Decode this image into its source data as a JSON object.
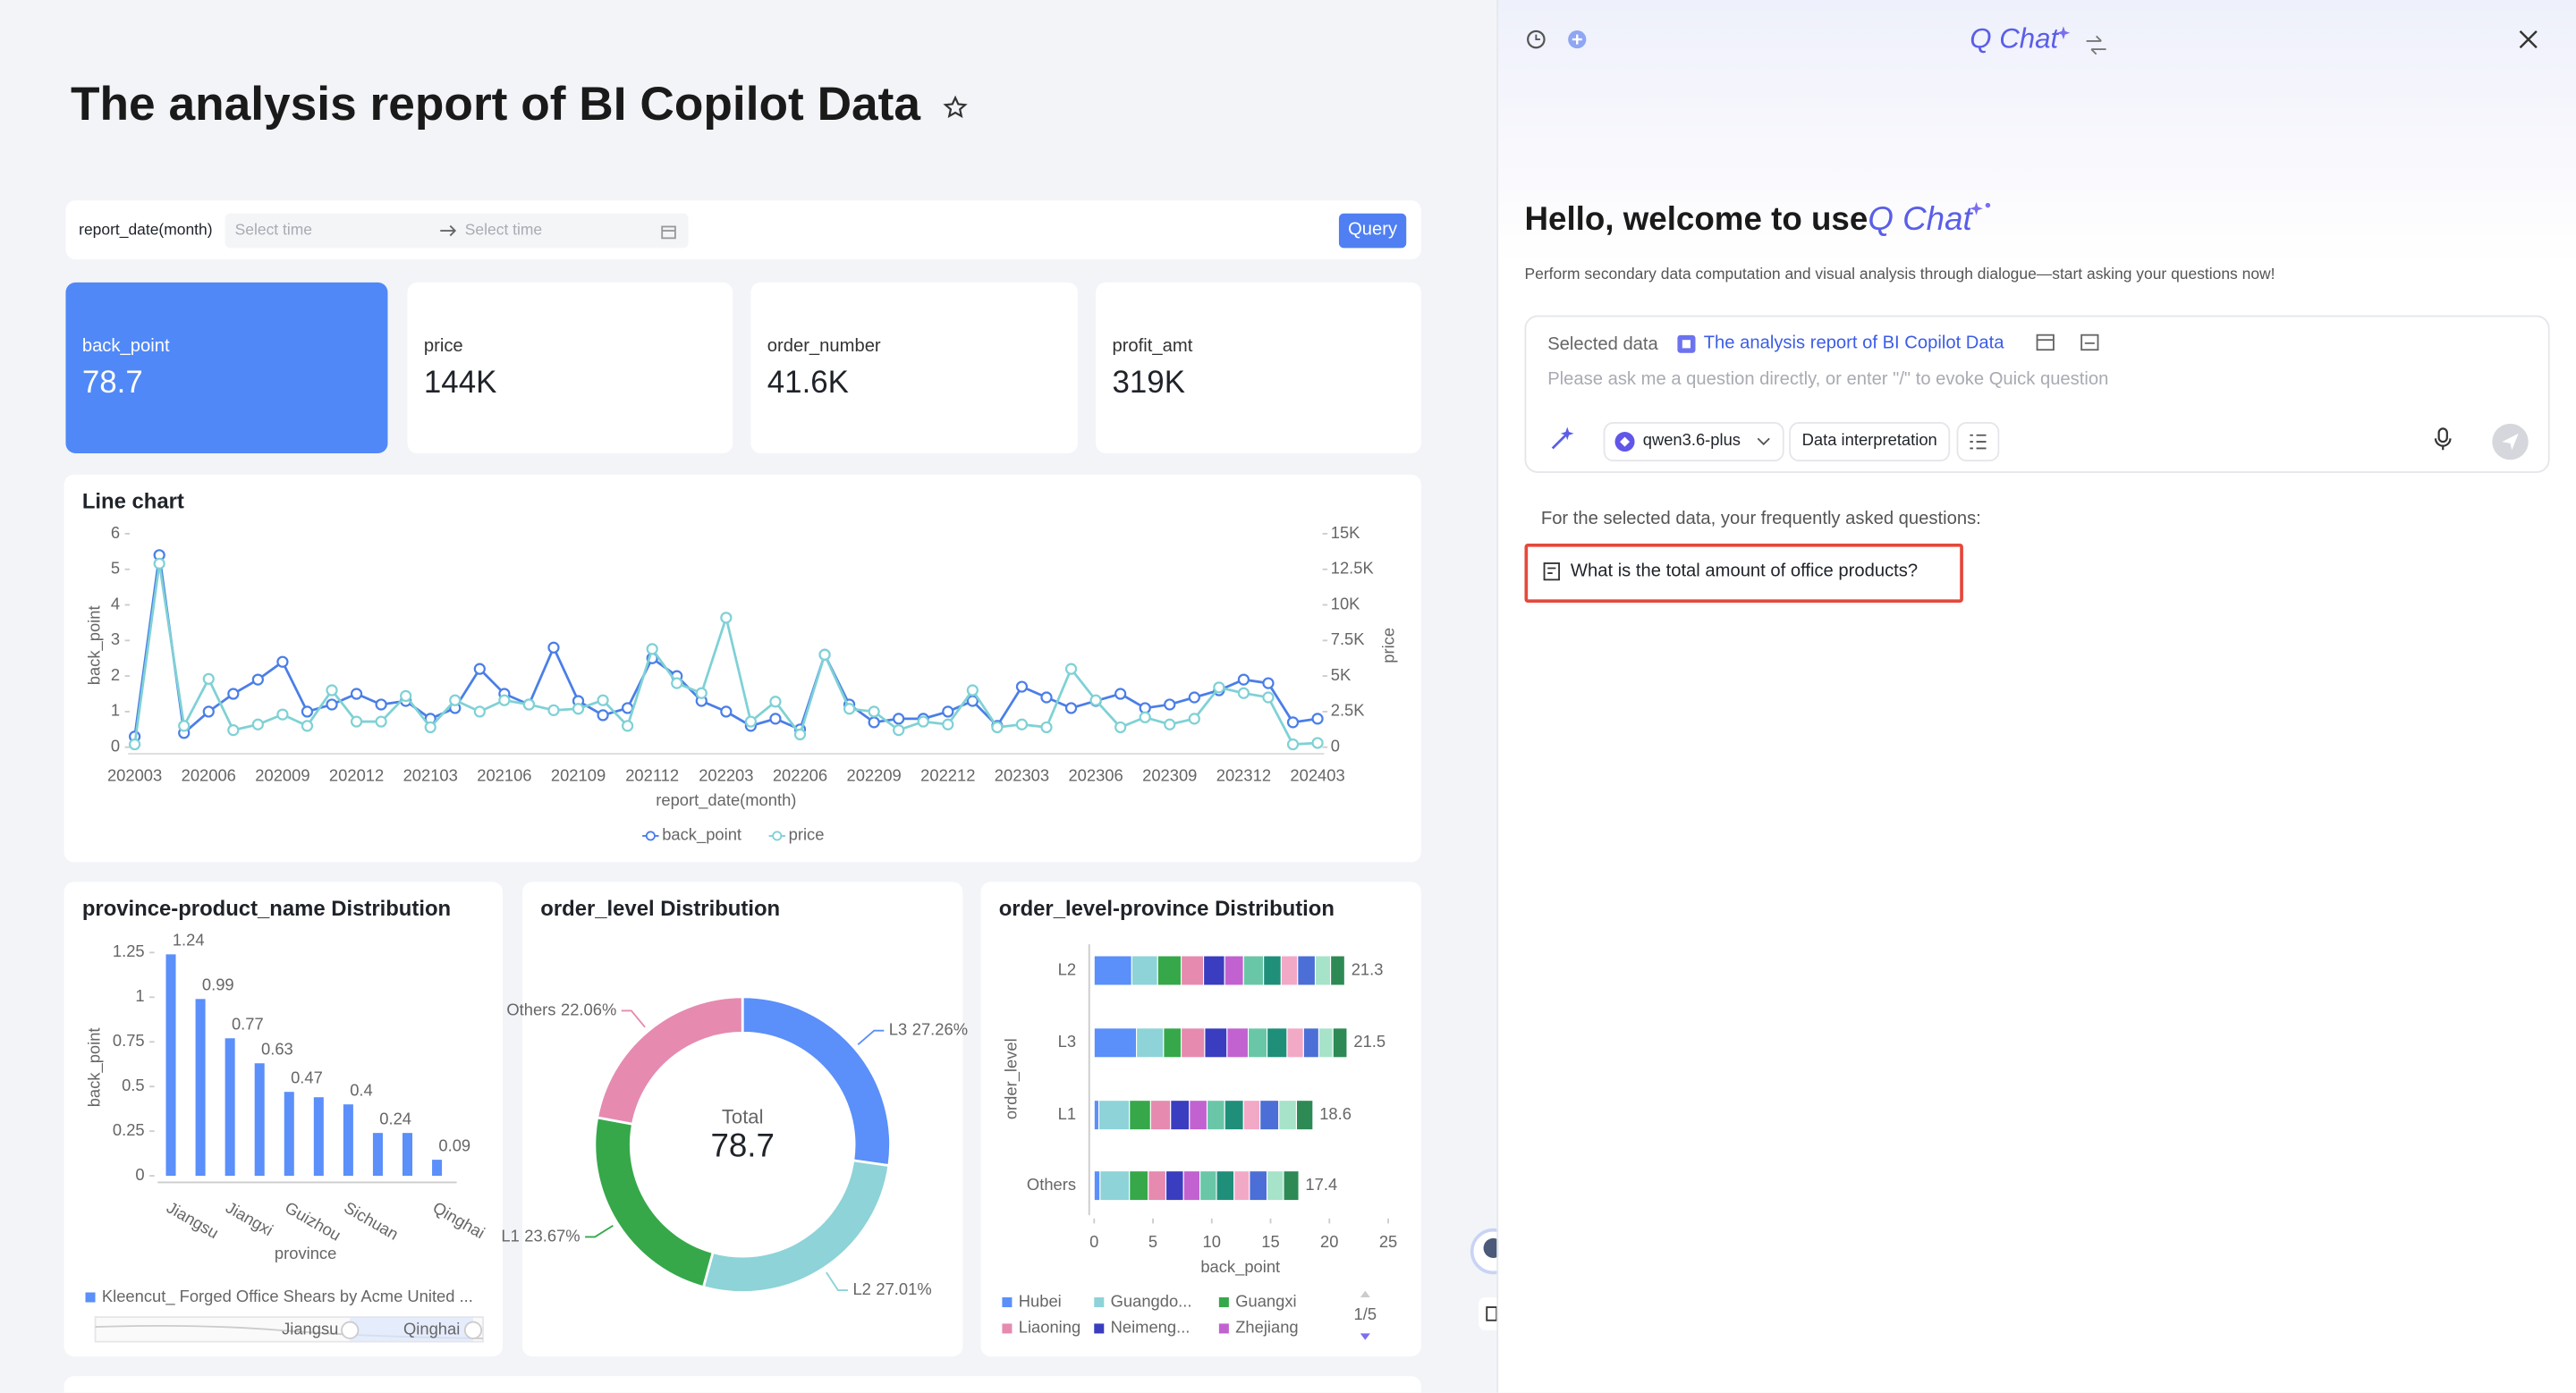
{
  "header": {
    "title": "The analysis report of BI Copilot Data"
  },
  "filter": {
    "label": "report_date(month)",
    "start_placeholder": "Select time",
    "end_placeholder": "Select time",
    "button": "Query"
  },
  "kpis": [
    {
      "name": "back_point",
      "value": "78.7"
    },
    {
      "name": "price",
      "value": "144K"
    },
    {
      "name": "order_number",
      "value": "41.6K"
    },
    {
      "name": "profit_amt",
      "value": "319K"
    }
  ],
  "line_chart": {
    "type": "line",
    "title": "Line chart",
    "x_label": "report_date(month)",
    "y_label": "back_point",
    "y2_label": "price",
    "categories": [
      "202003",
      null,
      null,
      "202006",
      null,
      null,
      "202009",
      null,
      null,
      "202012",
      null,
      null,
      "202103",
      null,
      null,
      "202106",
      null,
      null,
      "202109",
      null,
      null,
      "202112",
      null,
      null,
      "202203",
      null,
      null,
      "202206",
      null,
      null,
      "202209",
      null,
      null,
      "202212",
      null,
      null,
      "202303",
      null,
      null,
      "202306",
      null,
      null,
      "202309",
      null,
      null,
      "202312",
      null,
      null,
      "202403"
    ],
    "series": [
      {
        "name": "back_point",
        "color": "#4a7ee8",
        "values": [
          0.3,
          5.4,
          0.4,
          1.0,
          1.5,
          1.9,
          2.4,
          1.0,
          1.2,
          1.5,
          1.2,
          1.3,
          0.8,
          1.1,
          2.2,
          1.5,
          1.2,
          2.8,
          1.3,
          0.9,
          1.1,
          2.5,
          2.0,
          1.3,
          1.0,
          0.6,
          0.8,
          0.5,
          2.6,
          1.2,
          0.7,
          0.8,
          0.8,
          1.0,
          1.3,
          0.6,
          1.7,
          1.4,
          1.1,
          1.3,
          1.5,
          1.1,
          1.2,
          1.4,
          1.6,
          1.9,
          1.8,
          0.7,
          0.8
        ]
      },
      {
        "name": "price",
        "color": "#7fd1d5",
        "axis": "y2",
        "values": [
          200,
          12900,
          1500,
          4800,
          1200,
          1600,
          2300,
          1500,
          4000,
          1800,
          1800,
          3600,
          1400,
          3300,
          2500,
          3300,
          3000,
          2600,
          2700,
          3300,
          1500,
          6900,
          4500,
          3800,
          9100,
          1800,
          3200,
          900,
          6500,
          2700,
          2500,
          1200,
          1800,
          1600,
          4000,
          1400,
          1600,
          1400,
          5500,
          3300,
          1400,
          2100,
          1600,
          2000,
          4200,
          3800,
          3500,
          200,
          300
        ]
      }
    ],
    "ylim": [
      0,
      6
    ],
    "yticks": [
      0,
      1,
      2,
      3,
      4,
      5,
      6
    ],
    "y2lim": [
      0,
      15000
    ],
    "y2ticks": [
      0,
      {
        "value": 2500,
        "label": "2.5K"
      },
      {
        "value": 5000,
        "label": "5K"
      },
      {
        "value": 7500,
        "label": "7.5K"
      },
      {
        "value": 10000,
        "label": "10K"
      },
      {
        "value": 12500,
        "label": "12.5K"
      },
      {
        "value": 15000,
        "label": "15K"
      }
    ]
  },
  "bar_chart": {
    "type": "bar",
    "title": "province-product_name Distribution",
    "x_label": "province",
    "y_label": "back_point",
    "categories": [
      "Jiangsu",
      null,
      "Jiangxi",
      null,
      "Guizhou",
      null,
      "Sichuan",
      null,
      null,
      "Qinghai"
    ],
    "series": [
      {
        "name": "Kleencut_ Forged Office Shears by Acme United ...",
        "color": "#5b8ff9",
        "values": [
          1.24,
          0.99,
          0.77,
          0.63,
          0.47,
          0.44,
          0.4,
          0.24,
          0.24,
          0.09
        ],
        "value_labels": [
          "1.24",
          "0.99",
          "0.77",
          "0.63",
          "0.47",
          null,
          "0.4",
          "0.24",
          null,
          "0.09"
        ]
      }
    ],
    "ylim": [
      0,
      1.3
    ],
    "yticks": [
      0,
      0.25,
      0.5,
      0.75,
      1,
      1.25
    ],
    "slider": {
      "start": "Jiangsu",
      "end": "Qinghai"
    }
  },
  "donut_chart": {
    "type": "pie",
    "title": "order_level Distribution",
    "categories": [
      "L3",
      "L2",
      "L1",
      "Others"
    ],
    "values": [
      27.26,
      27.01,
      23.67,
      22.06
    ],
    "value_labels": [
      "27.26%",
      "27.01%",
      "23.67%",
      "22.06%"
    ],
    "colors": [
      "#5b8ff9",
      "#8dd3d8",
      "#36a84a",
      "#e68ab0"
    ],
    "center_label": "Total",
    "center_value": "78.7"
  },
  "stacked_chart": {
    "type": "bar",
    "orientation": "horizontal",
    "stacked": true,
    "title": "order_level-province Distribution",
    "x_label": "back_point",
    "y_label": "order_level",
    "categories": [
      "L2",
      "L3",
      "L1",
      "Others"
    ],
    "totals": [
      21.3,
      21.5,
      18.6,
      17.4
    ],
    "series": [
      {
        "name": "Hubei",
        "color": "#5b8ff9",
        "values": [
          3.2,
          3.6,
          0.4,
          0.5
        ]
      },
      {
        "name": "Guangdo...",
        "color": "#8dd3d8",
        "values": [
          2.2,
          2.3,
          2.6,
          2.5
        ]
      },
      {
        "name": "Guangxi",
        "color": "#36a84a",
        "values": [
          2.0,
          1.5,
          1.8,
          1.6
        ]
      },
      {
        "name": "Liaoning",
        "color": "#e68ab0",
        "values": [
          1.9,
          2.0,
          1.7,
          1.5
        ]
      },
      {
        "name": "Neimeng...",
        "color": "#3a3dbf",
        "values": [
          1.8,
          1.9,
          1.6,
          1.5
        ]
      },
      {
        "name": "Zhejiang",
        "color": "#c262d0",
        "values": [
          1.6,
          1.8,
          1.5,
          1.4
        ]
      },
      {
        "name": null,
        "color": "#69c7a8",
        "values": [
          1.7,
          1.6,
          1.5,
          1.4
        ]
      },
      {
        "name": null,
        "color": "#1f8f7a",
        "values": [
          1.5,
          1.7,
          1.6,
          1.5
        ]
      },
      {
        "name": null,
        "color": "#f2a9c6",
        "values": [
          1.4,
          1.4,
          1.4,
          1.3
        ]
      },
      {
        "name": null,
        "color": "#4b6fd6",
        "values": [
          1.5,
          1.3,
          1.6,
          1.5
        ]
      },
      {
        "name": null,
        "color": "#a6e3c9",
        "values": [
          1.3,
          1.2,
          1.5,
          1.4
        ]
      },
      {
        "name": null,
        "color": "#2d8a55",
        "values": [
          1.2,
          1.2,
          1.4,
          1.3
        ]
      }
    ],
    "xlim": [
      0,
      25
    ],
    "xticks": [
      0,
      5,
      10,
      15,
      20,
      25
    ],
    "legend_pager": "1/5"
  },
  "chat": {
    "header_title": "Q Chat",
    "welcome": "Hello, welcome to use",
    "brand": "Q Chat",
    "subtitle": "Perform secondary data computation and visual analysis through dialogue—start asking your questions now!",
    "selected_label": "Selected data",
    "selected_name": "The analysis report of BI Copilot Data",
    "placeholder": "Please ask me a question directly, or enter \"/\" to evoke Quick question",
    "model": "qwen3.6-plus",
    "mode": "Data interpretation",
    "faq_title": "For the selected data, your frequently asked questions:",
    "faq": [
      "What is the total amount of office products?"
    ]
  }
}
